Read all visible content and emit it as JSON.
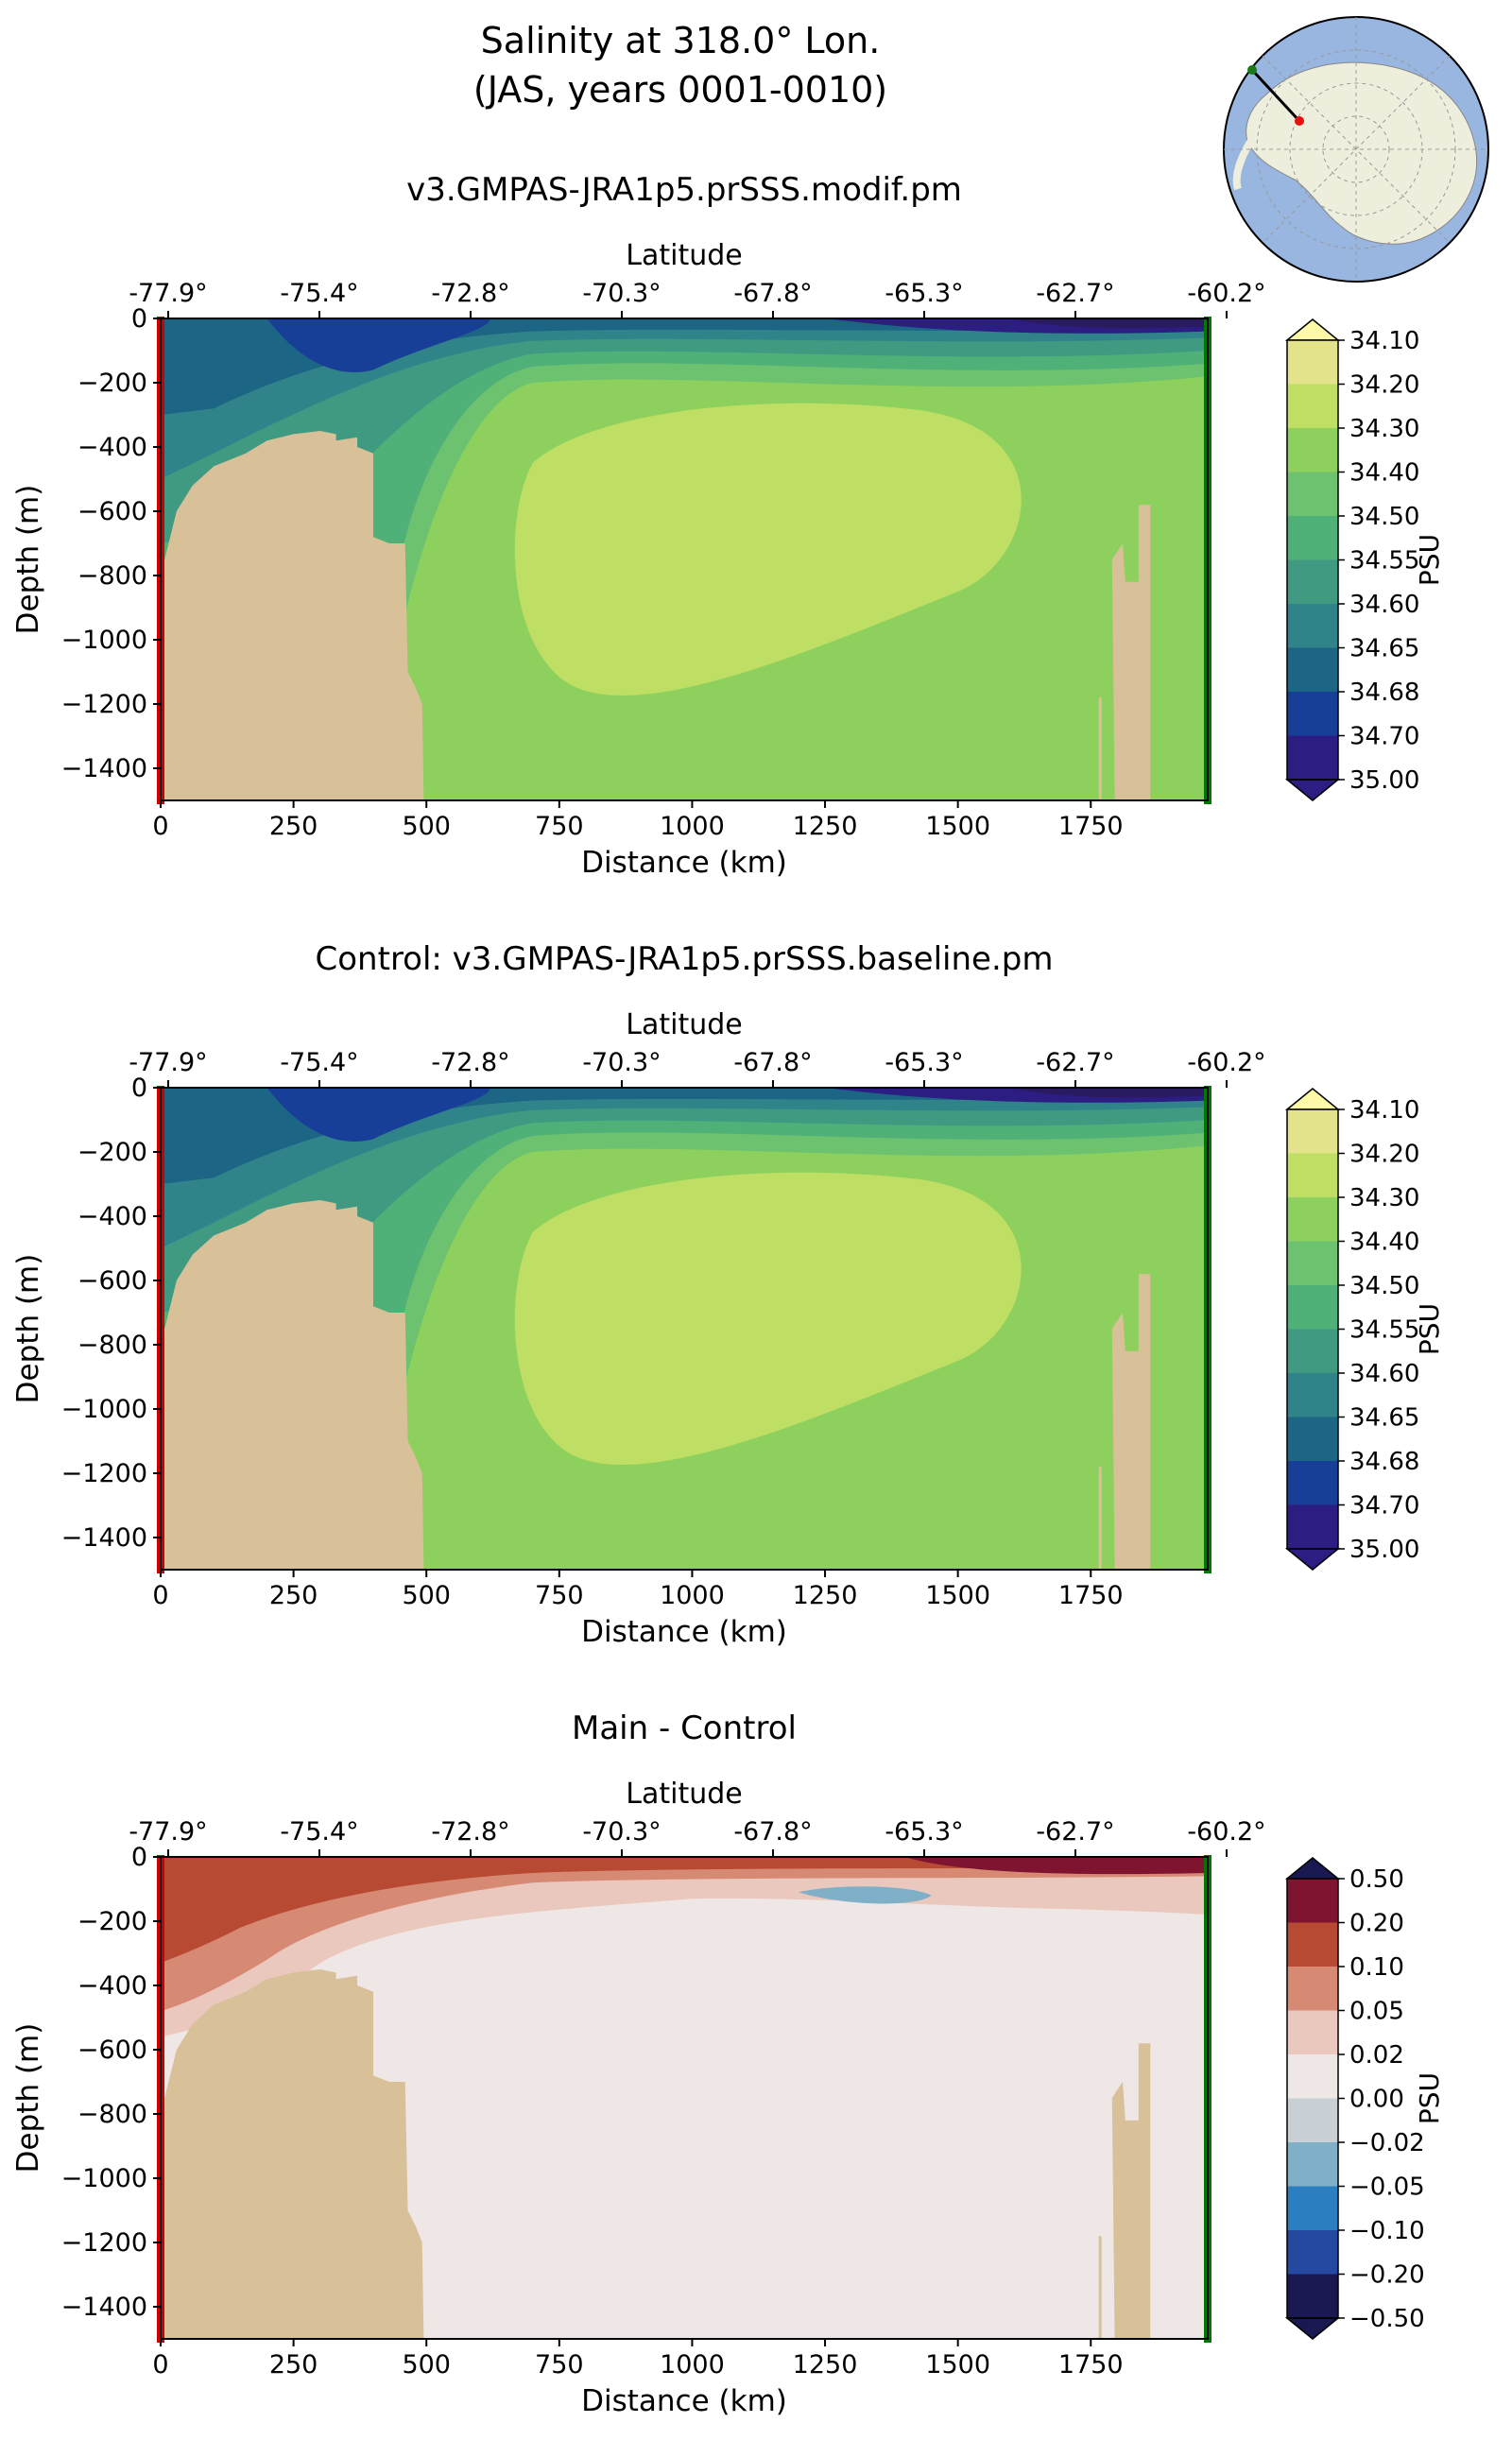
{
  "figure": {
    "title_line1": "Salinity at 318.0° Lon.",
    "title_line2": "(JAS, years 0001-0010)"
  },
  "inset_map": {
    "description_icon": "antarctica-map-icon",
    "colors": {
      "ocean": "#98b6e0",
      "land": "#eeeedd",
      "line": "#000000",
      "start": "#1a7a1a",
      "end": "#e81010"
    }
  },
  "colors": {
    "bathymetry": "#d8c098",
    "start_marker": "#cc0000",
    "end_marker": "#007700"
  },
  "chart_data": [
    {
      "type": "heatmap",
      "title": "v3.GMPAS-JRA1p5.prSSS.modif.pm",
      "xlabel": "Distance (km)",
      "ylabel": "Depth (m)",
      "top_axis_label": "Latitude",
      "top_ticks": [
        "-77.9°",
        "-75.4°",
        "-72.8°",
        "-70.3°",
        "-67.8°",
        "-65.3°",
        "-62.7°",
        "-60.2°"
      ],
      "xticks": [
        0,
        250,
        500,
        750,
        1000,
        1250,
        1500,
        1750
      ],
      "yticks": [
        0,
        -200,
        -400,
        -600,
        -800,
        -1000,
        -1200,
        -1400
      ],
      "xlim": [
        0,
        1970
      ],
      "ylim": [
        -1500,
        0
      ],
      "colorbar": {
        "label": "PSU",
        "levels": [
          "34.10",
          "34.20",
          "34.30",
          "34.40",
          "34.50",
          "34.55",
          "34.60",
          "34.65",
          "34.68",
          "34.70",
          "35.00"
        ],
        "colors": [
          "#2c1d82",
          "#2c1d82",
          "#173f97",
          "#1c6585",
          "#31838a",
          "#409a82",
          "#4fb078",
          "#6cc26e",
          "#8ed05e",
          "#bede64",
          "#e2e38a",
          "#fdf9a6"
        ]
      }
    },
    {
      "type": "heatmap",
      "title": "Control: v3.GMPAS-JRA1p5.prSSS.baseline.pm",
      "xlabel": "Distance (km)",
      "ylabel": "Depth (m)",
      "top_axis_label": "Latitude",
      "top_ticks": [
        "-77.9°",
        "-75.4°",
        "-72.8°",
        "-70.3°",
        "-67.8°",
        "-65.3°",
        "-62.7°",
        "-60.2°"
      ],
      "xticks": [
        0,
        250,
        500,
        750,
        1000,
        1250,
        1500,
        1750
      ],
      "yticks": [
        0,
        -200,
        -400,
        -600,
        -800,
        -1000,
        -1200,
        -1400
      ],
      "xlim": [
        0,
        1970
      ],
      "ylim": [
        -1500,
        0
      ],
      "colorbar": {
        "label": "PSU",
        "levels": [
          "34.10",
          "34.20",
          "34.30",
          "34.40",
          "34.50",
          "34.55",
          "34.60",
          "34.65",
          "34.68",
          "34.70",
          "35.00"
        ],
        "colors": [
          "#2c1d82",
          "#2c1d82",
          "#173f97",
          "#1c6585",
          "#31838a",
          "#409a82",
          "#4fb078",
          "#6cc26e",
          "#8ed05e",
          "#bede64",
          "#e2e38a",
          "#fdf9a6"
        ]
      }
    },
    {
      "type": "heatmap",
      "title": "Main - Control",
      "xlabel": "Distance (km)",
      "ylabel": "Depth (m)",
      "top_axis_label": "Latitude",
      "top_ticks": [
        "-77.9°",
        "-75.4°",
        "-72.8°",
        "-70.3°",
        "-67.8°",
        "-65.3°",
        "-62.7°",
        "-60.2°"
      ],
      "xticks": [
        0,
        250,
        500,
        750,
        1000,
        1250,
        1500,
        1750
      ],
      "yticks": [
        0,
        -200,
        -400,
        -600,
        -800,
        -1000,
        -1200,
        -1400
      ],
      "xlim": [
        0,
        1970
      ],
      "ylim": [
        -1500,
        0
      ],
      "colorbar": {
        "label": "PSU",
        "levels": [
          "0.50",
          "0.20",
          "0.10",
          "0.05",
          "0.02",
          "0.00",
          "−0.02",
          "−0.05",
          "−0.10",
          "−0.20",
          "−0.50"
        ],
        "colors": [
          "#3a0a12",
          "#7f1430",
          "#b84a33",
          "#d78a73",
          "#ebc8be",
          "#efe7e6",
          "#c8d0d6",
          "#7fb0c8",
          "#2b7fc0",
          "#2548a0",
          "#1a1850"
        ]
      }
    }
  ]
}
